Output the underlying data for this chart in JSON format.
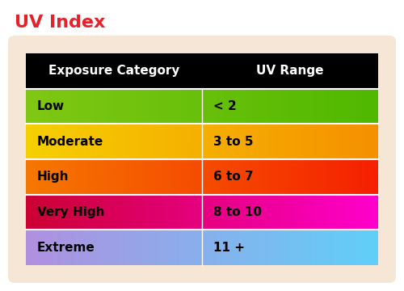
{
  "title": "UV Index",
  "title_color": "#e8202a",
  "title_fontsize": 16,
  "background_color": "#ffffff",
  "card_bg_color": "#f5e6d5",
  "header_bg_color": "#000000",
  "header_text_color": "#ffffff",
  "header_labels": [
    "Exposure Category",
    "UV Range"
  ],
  "header_fontsize": 11,
  "rows": [
    {
      "category": "Low",
      "uv_range": "< 2",
      "left_color": "#80c814",
      "right_color": "#50b800"
    },
    {
      "category": "Moderate",
      "uv_range": "3 to 5",
      "left_color": "#f5d000",
      "right_color": "#f59000"
    },
    {
      "category": "High",
      "uv_range": "6 to 7",
      "left_color": "#f57800",
      "right_color": "#f52000"
    },
    {
      "category": "Very High",
      "uv_range": "8 to 10",
      "left_color": "#cc0033",
      "right_color": "#ff00cc"
    },
    {
      "category": "Extreme",
      "uv_range": "11 +",
      "left_color": "#b090e0",
      "right_color": "#60d0f8"
    }
  ],
  "row_fontsize": 11,
  "col_split": 0.5,
  "figsize": [
    5.0,
    3.6
  ],
  "dpi": 100
}
